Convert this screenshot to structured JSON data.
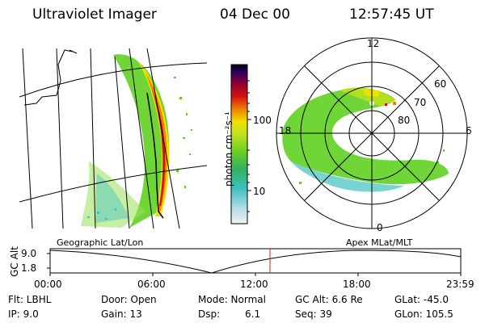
{
  "header": {
    "instrument": "Ultraviolet Imager",
    "date": "04 Dec 00",
    "time": "12:57:45 UT"
  },
  "colorbar": {
    "label": "photon cm⁻²s⁻¹",
    "ticks": [
      "100",
      "10"
    ],
    "colors": [
      "#f0f0f0",
      "#a8d8e8",
      "#40c0c0",
      "#30b060",
      "#60d020",
      "#b0e020",
      "#f0e000",
      "#f08000",
      "#d01010",
      "#900030",
      "#300060",
      "#000010"
    ]
  },
  "polar_plot": {
    "mlt_labels": [
      "12",
      "18",
      "6",
      "0"
    ],
    "mlat_labels": [
      "60",
      "70",
      "80"
    ]
  },
  "left_plot_caption": "Geographic Lat/Lon",
  "right_plot_caption": "Apex MLat/MLT",
  "altitude_plot": {
    "y_label": "GC Alt",
    "y_ticks": [
      "9.0",
      "1.8"
    ],
    "x_ticks": [
      "00:00",
      "06:00",
      "12:00",
      "18:00",
      "23:59"
    ],
    "marker_color": "#d02020"
  },
  "footer": {
    "filter": "Flt: LBHL",
    "ip": "IP:  9.0",
    "door": "Door: Open",
    "gain": "Gain: 13",
    "mode": "Mode: Normal",
    "dsp_label": "Dsp:",
    "dsp_value": "6.1",
    "gc_alt": "GC Alt: 6.6 Re",
    "seq": "Seq: 39",
    "glat": "GLat: -45.0",
    "glon": "GLon: 105.5"
  }
}
